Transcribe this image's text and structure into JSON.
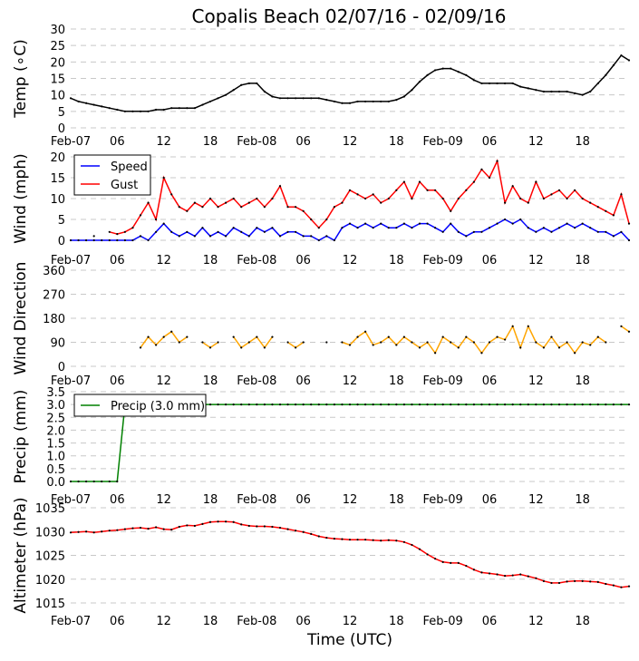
{
  "chart_data": {
    "type": "line",
    "title": "Copalis Beach 02/07/16 - 02/09/16",
    "xlabel": "Time (UTC)",
    "x_unit": "hours since 2016-02-07 00:00 UTC",
    "xlim": [
      0,
      72
    ],
    "x_ticks": [
      0,
      6,
      12,
      18,
      24,
      30,
      36,
      42,
      48,
      54,
      60,
      66
    ],
    "x_tick_labels": [
      "Feb-07",
      "06",
      "12",
      "18",
      "Feb-08",
      "06",
      "12",
      "18",
      "Feb-09",
      "06",
      "12",
      "18"
    ],
    "grid": "horizontal dashed",
    "x": [
      0,
      1,
      2,
      3,
      4,
      5,
      6,
      7,
      8,
      9,
      10,
      11,
      12,
      13,
      14,
      15,
      16,
      17,
      18,
      19,
      20,
      21,
      22,
      23,
      24,
      25,
      26,
      27,
      28,
      29,
      30,
      31,
      32,
      33,
      34,
      35,
      36,
      37,
      38,
      39,
      40,
      41,
      42,
      43,
      44,
      45,
      46,
      47,
      48,
      49,
      50,
      51,
      52,
      53,
      54,
      55,
      56,
      57,
      58,
      59,
      60,
      61,
      62,
      63,
      64,
      65,
      66,
      67,
      68,
      69,
      70,
      71,
      72
    ],
    "panels": [
      {
        "ylabel": "Temp ($^\\circ$C)",
        "ylabel_display": "Temp (∘C)",
        "ylim": [
          0,
          30
        ],
        "y_ticks": [
          "0",
          "5",
          "10",
          "15",
          "20",
          "25",
          "30"
        ],
        "series": [
          {
            "color": "#000000",
            "values": [
              9,
              8,
              7.5,
              7,
              6.5,
              6,
              5.5,
              5,
              5,
              5,
              5,
              5.5,
              5.5,
              6,
              6,
              6,
              6,
              7,
              8,
              9,
              10,
              11.5,
              13,
              13.5,
              13.5,
              11,
              9.5,
              9,
              9,
              9,
              9,
              9,
              9,
              8.5,
              8,
              7.5,
              7.5,
              8,
              8,
              8,
              8,
              8,
              8.5,
              9.5,
              11.5,
              14,
              16,
              17.5,
              18,
              18,
              17,
              16,
              14.5,
              13.5,
              13.5,
              13.5,
              13.5,
              13.5,
              12.5,
              12,
              11.5,
              11,
              11,
              11,
              11,
              10.5,
              10,
              11,
              13.5,
              16,
              19,
              22,
              20.5
            ]
          }
        ]
      },
      {
        "ylabel": "Wind (mph)",
        "ylim": [
          0,
          20
        ],
        "y_ticks": [
          "0",
          "5",
          "10",
          "15",
          "20"
        ],
        "legend": "top-left",
        "series": [
          {
            "name": "Speed",
            "color": "#0000ff",
            "values": [
              0,
              0,
              0,
              0,
              0,
              0,
              0,
              0,
              0,
              1,
              0,
              2,
              4,
              2,
              1,
              2,
              1,
              3,
              1,
              2,
              1,
              3,
              2,
              1,
              3,
              2,
              3,
              1,
              2,
              2,
              1,
              1,
              0,
              1,
              0,
              3,
              4,
              3,
              4,
              3,
              4,
              3,
              3,
              4,
              3,
              4,
              4,
              3,
              2,
              4,
              2,
              1,
              2,
              2,
              3,
              4,
              5,
              4,
              5,
              3,
              2,
              3,
              2,
              3,
              4,
              3,
              4,
              3,
              2,
              2,
              1,
              2,
              0
            ]
          },
          {
            "name": "Gust",
            "color": "#ff0000",
            "values": [
              null,
              null,
              null,
              1,
              null,
              2,
              1.5,
              2,
              3,
              6,
              9,
              5,
              15,
              11,
              8,
              7,
              9,
              8,
              10,
              8,
              9,
              10,
              8,
              9,
              10,
              8,
              10,
              13,
              8,
              8,
              7,
              5,
              3,
              5,
              8,
              9,
              12,
              11,
              10,
              11,
              9,
              10,
              12,
              14,
              10,
              14,
              12,
              12,
              10,
              7,
              10,
              12,
              14,
              17,
              15,
              19,
              9,
              13,
              10,
              9,
              14,
              10,
              11,
              12,
              10,
              12,
              10,
              9,
              8,
              7,
              6,
              11,
              4
            ]
          }
        ]
      },
      {
        "ylabel": "Wind Direction",
        "ylim": [
          0,
          360
        ],
        "y_ticks": [
          "0",
          "90",
          "180",
          "270",
          "360"
        ],
        "series": [
          {
            "color": "#ffa500",
            "values": [
              null,
              null,
              null,
              null,
              null,
              null,
              null,
              null,
              null,
              70,
              110,
              80,
              110,
              130,
              90,
              110,
              null,
              90,
              70,
              90,
              null,
              110,
              70,
              90,
              110,
              70,
              110,
              null,
              90,
              70,
              90,
              null,
              null,
              90,
              null,
              90,
              80,
              110,
              130,
              80,
              90,
              110,
              80,
              110,
              90,
              70,
              90,
              50,
              110,
              90,
              70,
              110,
              90,
              50,
              90,
              110,
              100,
              150,
              70,
              150,
              90,
              70,
              110,
              70,
              90,
              50,
              90,
              80,
              110,
              90,
              null,
              150,
              130
            ]
          }
        ]
      },
      {
        "ylabel": "Precip (mm)",
        "ylim": [
          0,
          3.5
        ],
        "y_ticks": [
          "0.0",
          "0.5",
          "1.0",
          "1.5",
          "2.0",
          "2.5",
          "3.0",
          "3.5"
        ],
        "legend": "top-left",
        "series": [
          {
            "name": "Precip (3.0 mm)",
            "color": "#008000",
            "values": [
              0,
              0,
              0,
              0,
              0,
              0,
              0,
              3,
              3,
              3,
              3,
              3,
              3,
              3,
              3,
              3,
              3,
              3,
              3,
              3,
              3,
              3,
              3,
              3,
              3,
              3,
              3,
              3,
              3,
              3,
              3,
              3,
              3,
              3,
              3,
              3,
              3,
              3,
              3,
              3,
              3,
              3,
              3,
              3,
              3,
              3,
              3,
              3,
              3,
              3,
              3,
              3,
              3,
              3,
              3,
              3,
              3,
              3,
              3,
              3,
              3,
              3,
              3,
              3,
              3,
              3,
              3,
              3,
              3,
              3,
              3,
              3,
              3
            ]
          }
        ]
      },
      {
        "ylabel": "Altimeter (hPa)",
        "ylim": [
          1015,
          1035
        ],
        "y_ticks": [
          "1015",
          "1020",
          "1025",
          "1030",
          "1035"
        ],
        "series": [
          {
            "color": "#ff0000",
            "values": [
              1029.8,
              1029.9,
              1030,
              1029.8,
              1030,
              1030.2,
              1030.3,
              1030.5,
              1030.7,
              1030.8,
              1030.6,
              1030.9,
              1030.5,
              1030.4,
              1031,
              1031.3,
              1031.2,
              1031.6,
              1032,
              1032.1,
              1032.1,
              1032,
              1031.5,
              1031.2,
              1031.1,
              1031.1,
              1031,
              1030.8,
              1030.5,
              1030.2,
              1029.9,
              1029.5,
              1029,
              1028.7,
              1028.5,
              1028.4,
              1028.3,
              1028.3,
              1028.3,
              1028.2,
              1028.1,
              1028.2,
              1028.1,
              1027.8,
              1027.2,
              1026.3,
              1025.2,
              1024.3,
              1023.6,
              1023.4,
              1023.4,
              1022.8,
              1022,
              1021.4,
              1021.2,
              1021,
              1020.7,
              1020.8,
              1021,
              1020.6,
              1020.2,
              1019.6,
              1019.2,
              1019.2,
              1019.5,
              1019.6,
              1019.6,
              1019.5,
              1019.4,
              1019,
              1018.7,
              1018.3,
              1018.5
            ]
          }
        ]
      }
    ]
  }
}
